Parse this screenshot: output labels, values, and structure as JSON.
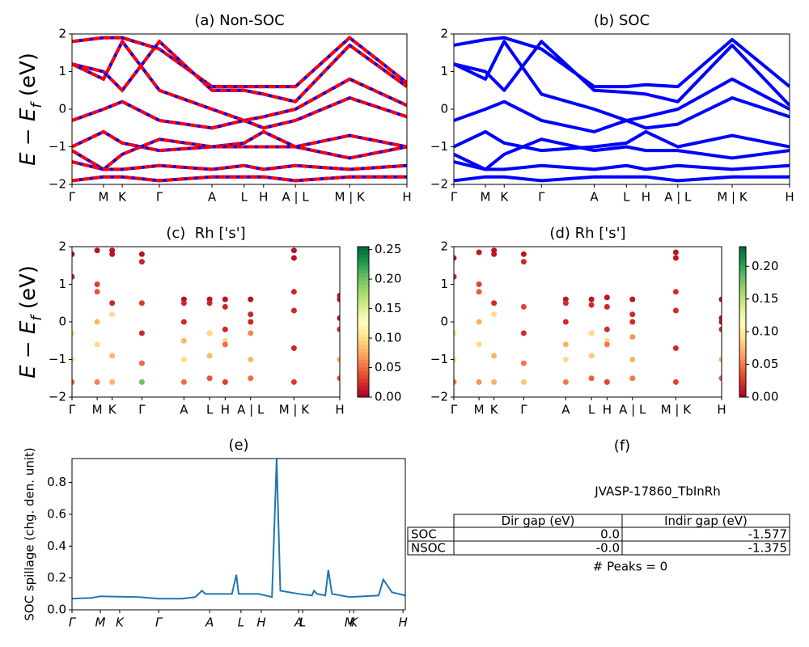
{
  "chart_data": [
    {
      "type": "line",
      "title": "(a) Non-SOC",
      "ylabel": [
        "E − E",
        "f",
        " (eV)"
      ],
      "color": "blue",
      "dash_color": "red",
      "xlim": [
        0,
        1
      ],
      "ylim": [
        -2,
        2
      ],
      "xticks": [
        {
          "value": 0,
          "label": "Γ"
        },
        {
          "value": 0.094,
          "label": "M"
        },
        {
          "value": 0.15,
          "label": "K"
        },
        {
          "value": 0.261,
          "label": "Γ"
        },
        {
          "value": 0.418,
          "label": "A"
        },
        {
          "value": 0.514,
          "label": "L"
        },
        {
          "value": 0.572,
          "label": "H"
        },
        {
          "value": 0.667,
          "label": "A | L"
        },
        {
          "value": 0.829,
          "label": "M | K"
        },
        {
          "value": 1,
          "label": "H"
        }
      ],
      "yticks": [
        {
          "value": -2,
          "label": "−2"
        },
        {
          "value": -1,
          "label": "−1"
        },
        0,
        1,
        2
      ],
      "x": [
        0,
        0.094,
        0.15,
        0.261,
        0.418,
        0.514,
        0.572,
        0.667,
        0.829,
        1
      ],
      "series": [
        {
          "values": [
            1.8,
            1.9,
            1.9,
            1.6,
            0.6,
            0.6,
            0.6,
            0.6,
            1.9,
            0.7
          ]
        },
        {
          "values": [
            1.2,
            1.0,
            0.5,
            1.8,
            0.5,
            0.5,
            0.4,
            0.2,
            1.7,
            0.6
          ]
        },
        {
          "values": [
            1.2,
            0.8,
            1.8,
            0.5,
            0.0,
            -0.3,
            -0.2,
            0.0,
            0.8,
            0.1
          ]
        },
        {
          "values": [
            -0.3,
            0.0,
            0.2,
            -0.3,
            -0.5,
            -0.3,
            -0.5,
            -0.3,
            0.3,
            -0.2
          ]
        },
        {
          "values": [
            -1.0,
            -0.6,
            -0.9,
            -1.1,
            -1.0,
            -0.9,
            -0.6,
            -1.0,
            -0.7,
            -1.0
          ]
        },
        {
          "values": [
            -1.1,
            -1.6,
            -1.2,
            -0.8,
            -1.0,
            -1.0,
            -1.0,
            -1.0,
            -1.3,
            -1.0
          ]
        },
        {
          "values": [
            -1.4,
            -1.6,
            -1.6,
            -1.5,
            -1.6,
            -1.5,
            -1.6,
            -1.5,
            -1.6,
            -1.5
          ]
        },
        {
          "values": [
            -1.9,
            -1.8,
            -1.8,
            -1.9,
            -1.8,
            -1.8,
            -1.8,
            -1.9,
            -1.8,
            -1.8
          ]
        }
      ]
    },
    {
      "type": "line",
      "title": "(b) SOC",
      "color": "blue",
      "xlim": [
        0,
        1
      ],
      "ylim": [
        -2,
        2
      ],
      "xticks": [
        {
          "value": 0,
          "label": "Γ"
        },
        {
          "value": 0.094,
          "label": "M"
        },
        {
          "value": 0.15,
          "label": "K"
        },
        {
          "value": 0.261,
          "label": "Γ"
        },
        {
          "value": 0.418,
          "label": "A"
        },
        {
          "value": 0.514,
          "label": "L"
        },
        {
          "value": 0.572,
          "label": "H"
        },
        {
          "value": 0.667,
          "label": "A | L"
        },
        {
          "value": 0.829,
          "label": "M | K"
        },
        {
          "value": 1,
          "label": "H"
        }
      ],
      "yticks": [
        {
          "value": -2,
          "label": "−2"
        },
        {
          "value": -1,
          "label": "−1"
        },
        0,
        1,
        2
      ],
      "x": [
        0,
        0.094,
        0.15,
        0.261,
        0.418,
        0.514,
        0.572,
        0.667,
        0.829,
        1
      ],
      "series": [
        {
          "values": [
            1.7,
            1.85,
            1.9,
            1.6,
            0.6,
            0.6,
            0.65,
            0.6,
            1.85,
            0.6
          ]
        },
        {
          "values": [
            1.2,
            1.0,
            0.5,
            1.8,
            0.5,
            0.45,
            0.4,
            0.2,
            1.7,
            0.1
          ]
        },
        {
          "values": [
            1.2,
            0.8,
            1.8,
            0.4,
            0.0,
            -0.3,
            -0.2,
            0.0,
            0.8,
            0.0
          ]
        },
        {
          "values": [
            -0.3,
            0.0,
            0.2,
            -0.3,
            -0.6,
            -0.3,
            -0.5,
            -0.4,
            0.3,
            -0.2
          ]
        },
        {
          "values": [
            -1.0,
            -0.6,
            -0.9,
            -1.1,
            -1.0,
            -0.9,
            -0.6,
            -1.0,
            -0.7,
            -1.0
          ]
        },
        {
          "values": [
            -1.2,
            -1.6,
            -1.2,
            -0.8,
            -1.1,
            -1.0,
            -1.1,
            -1.1,
            -1.3,
            -1.1
          ]
        },
        {
          "values": [
            -1.4,
            -1.6,
            -1.6,
            -1.5,
            -1.6,
            -1.5,
            -1.6,
            -1.5,
            -1.6,
            -1.5
          ]
        },
        {
          "values": [
            -1.9,
            -1.8,
            -1.8,
            -1.9,
            -1.8,
            -1.8,
            -1.8,
            -1.9,
            -1.8,
            -1.8
          ]
        }
      ]
    },
    {
      "type": "scatter",
      "title": "(c)  Rh ['s']",
      "ylabel": [
        "E − E",
        "f",
        " (eV)"
      ],
      "colormap": "RdYlGn",
      "clim": [
        0,
        0.255
      ],
      "cticks": [
        {
          "value": 0,
          "label": "0.00"
        },
        0.05,
        {
          "value": 0.1,
          "label": "0.10"
        },
        0.15,
        {
          "value": 0.2,
          "label": "0.20"
        },
        0.25
      ],
      "xlim": [
        0,
        1
      ],
      "ylim": [
        -2,
        2
      ],
      "xticks": [
        {
          "value": 0,
          "label": "Γ"
        },
        {
          "value": 0.094,
          "label": "M"
        },
        {
          "value": 0.15,
          "label": "K"
        },
        {
          "value": 0.261,
          "label": "Γ"
        },
        {
          "value": 0.418,
          "label": "A"
        },
        {
          "value": 0.514,
          "label": "L"
        },
        {
          "value": 0.572,
          "label": "H"
        },
        {
          "value": 0.667,
          "label": "A | L"
        },
        {
          "value": 0.829,
          "label": "M | K"
        },
        {
          "value": 1,
          "label": "H"
        }
      ],
      "yticks": [
        {
          "value": -2,
          "label": "−2"
        },
        {
          "value": -1,
          "label": "−1"
        },
        0,
        1,
        2
      ],
      "x": [
        0,
        0.094,
        0.15,
        0.261,
        0.418,
        0.514,
        0.572,
        0.667,
        0.829,
        1
      ],
      "series": [
        {
          "values": [
            1.8,
            1.9,
            1.9,
            1.6,
            0.6,
            0.6,
            0.6,
            0.6,
            1.9,
            0.7
          ],
          "weights": [
            0.01,
            0.01,
            0.01,
            0.02,
            0.01,
            0.01,
            0.01,
            0.01,
            0.01,
            0.01
          ]
        },
        {
          "values": [
            1.2,
            1.0,
            0.5,
            1.8,
            0.5,
            0.5,
            0.4,
            0.2,
            1.7,
            0.6
          ],
          "weights": [
            0.02,
            0.03,
            0.02,
            0.01,
            0.02,
            0.02,
            0.02,
            0.02,
            0.01,
            0.01
          ]
        },
        {
          "values": [
            1.2,
            0.8,
            1.8,
            0.5,
            0.0,
            -0.3,
            -0.2,
            0.0,
            0.8,
            0.1
          ],
          "weights": [
            0.02,
            0.04,
            0.01,
            0.03,
            0.02,
            0.03,
            0.02,
            0.02,
            0.02,
            0.01
          ]
        },
        {
          "values": [
            -0.3,
            0.0,
            0.2,
            -0.3,
            -0.5,
            -0.3,
            -0.5,
            -0.3,
            0.3,
            -0.2
          ],
          "weights": [
            0.1,
            0.08,
            0.1,
            0.02,
            0.08,
            0.1,
            0.1,
            0.06,
            0.02,
            0.02
          ]
        },
        {
          "values": [
            -1.0,
            -0.6,
            -0.9,
            -1.1,
            -1.0,
            -0.9,
            -0.6,
            -1.0,
            -0.7,
            -1.0
          ],
          "weights": [
            0.1,
            0.1,
            0.08,
            0.05,
            0.1,
            0.08,
            0.05,
            0.08,
            0.02,
            0.08
          ]
        },
        {
          "values": [
            -1.6,
            -1.6,
            -1.6,
            -1.6,
            -1.6,
            -1.5,
            -1.6,
            -1.5,
            -1.6,
            -1.5
          ],
          "weights": [
            0.05,
            0.06,
            0.08,
            0.2,
            0.05,
            0.04,
            0.03,
            0.05,
            0.03,
            0.04
          ]
        }
      ]
    },
    {
      "type": "scatter",
      "title": "(d) Rh ['s']",
      "colormap": "RdYlGn",
      "clim": [
        0,
        0.23
      ],
      "cticks": [
        {
          "value": 0,
          "label": "0.00"
        },
        0.05,
        {
          "value": 0.1,
          "label": "0.10"
        },
        0.15,
        {
          "value": 0.2,
          "label": "0.20"
        }
      ],
      "xlim": [
        0,
        1
      ],
      "ylim": [
        -2,
        2
      ],
      "xticks": [
        {
          "value": 0,
          "label": "Γ"
        },
        {
          "value": 0.094,
          "label": "M"
        },
        {
          "value": 0.15,
          "label": "K"
        },
        {
          "value": 0.261,
          "label": "Γ"
        },
        {
          "value": 0.418,
          "label": "A"
        },
        {
          "value": 0.514,
          "label": "L"
        },
        {
          "value": 0.572,
          "label": "H"
        },
        {
          "value": 0.667,
          "label": "A | L"
        },
        {
          "value": 0.829,
          "label": "M | K"
        },
        {
          "value": 1,
          "label": "H"
        }
      ],
      "yticks": [
        {
          "value": -2,
          "label": "−2"
        },
        {
          "value": -1,
          "label": "−1"
        },
        0,
        1,
        2
      ],
      "x": [
        0,
        0.094,
        0.15,
        0.261,
        0.418,
        0.514,
        0.572,
        0.667,
        0.829,
        1
      ],
      "series": [
        {
          "values": [
            1.7,
            1.85,
            1.9,
            1.6,
            0.6,
            0.6,
            0.65,
            0.6,
            1.85,
            0.6
          ],
          "weights": [
            0.01,
            0.01,
            0.01,
            0.02,
            0.01,
            0.01,
            0.01,
            0.01,
            0.01,
            0.01
          ]
        },
        {
          "values": [
            1.2,
            1.0,
            0.5,
            1.8,
            0.5,
            0.45,
            0.4,
            0.2,
            1.7,
            0.1
          ],
          "weights": [
            0.02,
            0.03,
            0.02,
            0.01,
            0.02,
            0.02,
            0.02,
            0.02,
            0.01,
            0.01
          ]
        },
        {
          "values": [
            1.2,
            0.8,
            1.8,
            0.4,
            0.0,
            -0.3,
            -0.2,
            0.0,
            0.8,
            0.0
          ],
          "weights": [
            0.02,
            0.04,
            0.01,
            0.03,
            0.02,
            0.03,
            0.02,
            0.02,
            0.02,
            0.01
          ]
        },
        {
          "values": [
            -0.3,
            0.0,
            0.2,
            -0.3,
            -0.6,
            -0.3,
            -0.5,
            -0.4,
            0.3,
            -0.2
          ],
          "weights": [
            0.09,
            0.07,
            0.09,
            0.02,
            0.07,
            0.09,
            0.09,
            0.06,
            0.02,
            0.02
          ]
        },
        {
          "values": [
            -1.0,
            -0.6,
            -0.9,
            -1.1,
            -1.0,
            -0.9,
            -0.6,
            -1.0,
            -0.7,
            -1.0
          ],
          "weights": [
            0.09,
            0.09,
            0.07,
            0.05,
            0.09,
            0.08,
            0.05,
            0.07,
            0.02,
            0.07
          ]
        },
        {
          "values": [
            -1.6,
            -1.6,
            -1.6,
            -1.6,
            -1.6,
            -1.5,
            -1.6,
            -1.5,
            -1.6,
            -1.5
          ],
          "weights": [
            0.05,
            0.06,
            0.07,
            0.08,
            0.05,
            0.04,
            0.03,
            0.05,
            0.03,
            0.04
          ]
        }
      ]
    },
    {
      "type": "line",
      "title": "(e)",
      "ylabel": "SOC spillage (chg. den. unit)",
      "color": "#1f77b4",
      "xlim": [
        0,
        1
      ],
      "ylim": [
        0,
        0.95
      ],
      "xticks": [
        {
          "value": 0,
          "label": "Γ"
        },
        {
          "value": 0.085,
          "label": "M"
        },
        {
          "value": 0.143,
          "label": "K"
        },
        {
          "value": 0.26,
          "label": "Γ"
        },
        {
          "value": 0.413,
          "label": "A"
        },
        {
          "value": 0.507,
          "label": "L"
        },
        {
          "value": 0.568,
          "label": "H"
        },
        {
          "value": 0.68,
          "label": "A"
        },
        {
          "value": 0.692,
          "label": "L"
        },
        {
          "value": 0.833,
          "label": "M"
        },
        {
          "value": 0.845,
          "label": "K"
        },
        {
          "value": 0.993,
          "label": "H"
        }
      ],
      "yticks": [
        {
          "value": 0,
          "label": "0.0"
        },
        0.2,
        0.4,
        0.6,
        0.8
      ],
      "x": [
        0,
        0.06,
        0.085,
        0.2,
        0.26,
        0.33,
        0.37,
        0.39,
        0.4,
        0.48,
        0.493,
        0.5,
        0.56,
        0.6,
        0.614,
        0.625,
        0.68,
        0.72,
        0.726,
        0.735,
        0.76,
        0.769,
        0.78,
        0.833,
        0.92,
        0.934,
        0.96,
        1
      ],
      "values": [
        0.07,
        0.075,
        0.085,
        0.08,
        0.07,
        0.07,
        0.08,
        0.12,
        0.1,
        0.1,
        0.22,
        0.1,
        0.1,
        0.08,
        0.95,
        0.12,
        0.1,
        0.09,
        0.12,
        0.1,
        0.09,
        0.25,
        0.1,
        0.08,
        0.09,
        0.19,
        0.11,
        0.09
      ]
    },
    {
      "type": "table",
      "title": "(f)",
      "subtitle": "JVASP-17860_TbInRh",
      "columns": [
        "Dir gap (eV)",
        "Indir gap (eV)"
      ],
      "rows": [
        [
          "SOC",
          "0.0",
          "-1.577"
        ],
        [
          "NSOC",
          "-0.0",
          "-1.375"
        ]
      ],
      "footer": "# Peaks = 0"
    }
  ]
}
